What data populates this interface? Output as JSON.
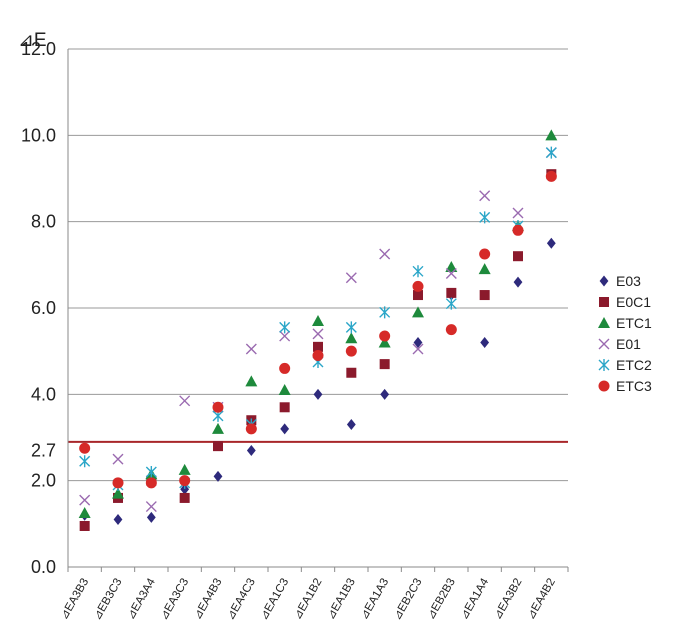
{
  "chart_data": {
    "type": "scatter",
    "title": "",
    "ylabel": "⊿E",
    "xlabel": "",
    "ylim": [
      0,
      12
    ],
    "yticks": [
      {
        "value": 0,
        "label": "0.0"
      },
      {
        "value": 2,
        "label": "2.0"
      },
      {
        "value": 2.7,
        "label": "2.7"
      },
      {
        "value": 4,
        "label": "4.0"
      },
      {
        "value": 6,
        "label": "6.0"
      },
      {
        "value": 8,
        "label": "8.0"
      },
      {
        "value": 10,
        "label": "10.0"
      },
      {
        "value": 12,
        "label": "12.0"
      }
    ],
    "gridlines": [
      2,
      4,
      6,
      8,
      10,
      12
    ],
    "reference_line": {
      "value": 2.9,
      "color": "#a8262a"
    },
    "grid": true,
    "legend_position": "right",
    "categories": [
      "⊿EA3B3",
      "⊿EB3C3",
      "⊿EA3A4",
      "⊿EA3C3",
      "⊿EA4B3",
      "⊿EA4C3",
      "⊿EA1C3",
      "⊿EA1B2",
      "⊿EA1B3",
      "⊿EA1A3",
      "⊿EB2C3",
      "⊿EB2B3",
      "⊿EA1A4",
      "⊿EA3B2",
      "⊿EA4B2"
    ],
    "series": [
      {
        "name": "E03",
        "marker": "diamond",
        "color": "#2e2a7c",
        "values": [
          1.2,
          1.1,
          1.15,
          1.8,
          2.1,
          2.7,
          3.2,
          4.0,
          3.3,
          4.0,
          5.2,
          6.3,
          5.2,
          6.6,
          7.5
        ]
      },
      {
        "name": "E0C1",
        "marker": "square",
        "color": "#8b1a2c",
        "values": [
          0.95,
          1.6,
          2.0,
          1.6,
          2.8,
          3.4,
          3.7,
          5.1,
          4.5,
          4.7,
          6.3,
          6.35,
          6.3,
          7.2,
          9.1
        ]
      },
      {
        "name": "ETC1",
        "marker": "triangle",
        "color": "#1e8a3c",
        "values": [
          1.25,
          1.7,
          2.15,
          2.25,
          3.2,
          4.3,
          4.1,
          5.7,
          5.3,
          5.2,
          5.9,
          6.95,
          6.9,
          7.9,
          10.0
        ]
      },
      {
        "name": "E01",
        "marker": "x",
        "color": "#9a6ab0",
        "values": [
          1.55,
          2.5,
          1.4,
          3.85,
          3.7,
          5.05,
          5.35,
          5.4,
          6.7,
          7.25,
          5.05,
          6.8,
          8.6,
          8.2,
          9.6
        ]
      },
      {
        "name": "ETC2",
        "marker": "star",
        "color": "#2aa6c8",
        "values": [
          2.45,
          1.9,
          2.2,
          1.95,
          3.5,
          3.3,
          5.55,
          4.75,
          5.55,
          5.9,
          6.85,
          6.1,
          8.1,
          7.9,
          9.6
        ]
      },
      {
        "name": "ETC3",
        "marker": "circle",
        "color": "#d62a28",
        "values": [
          2.75,
          1.95,
          1.95,
          2.0,
          3.7,
          3.2,
          4.6,
          4.9,
          5.0,
          5.35,
          6.5,
          5.5,
          7.25,
          7.8,
          9.05
        ]
      }
    ]
  }
}
